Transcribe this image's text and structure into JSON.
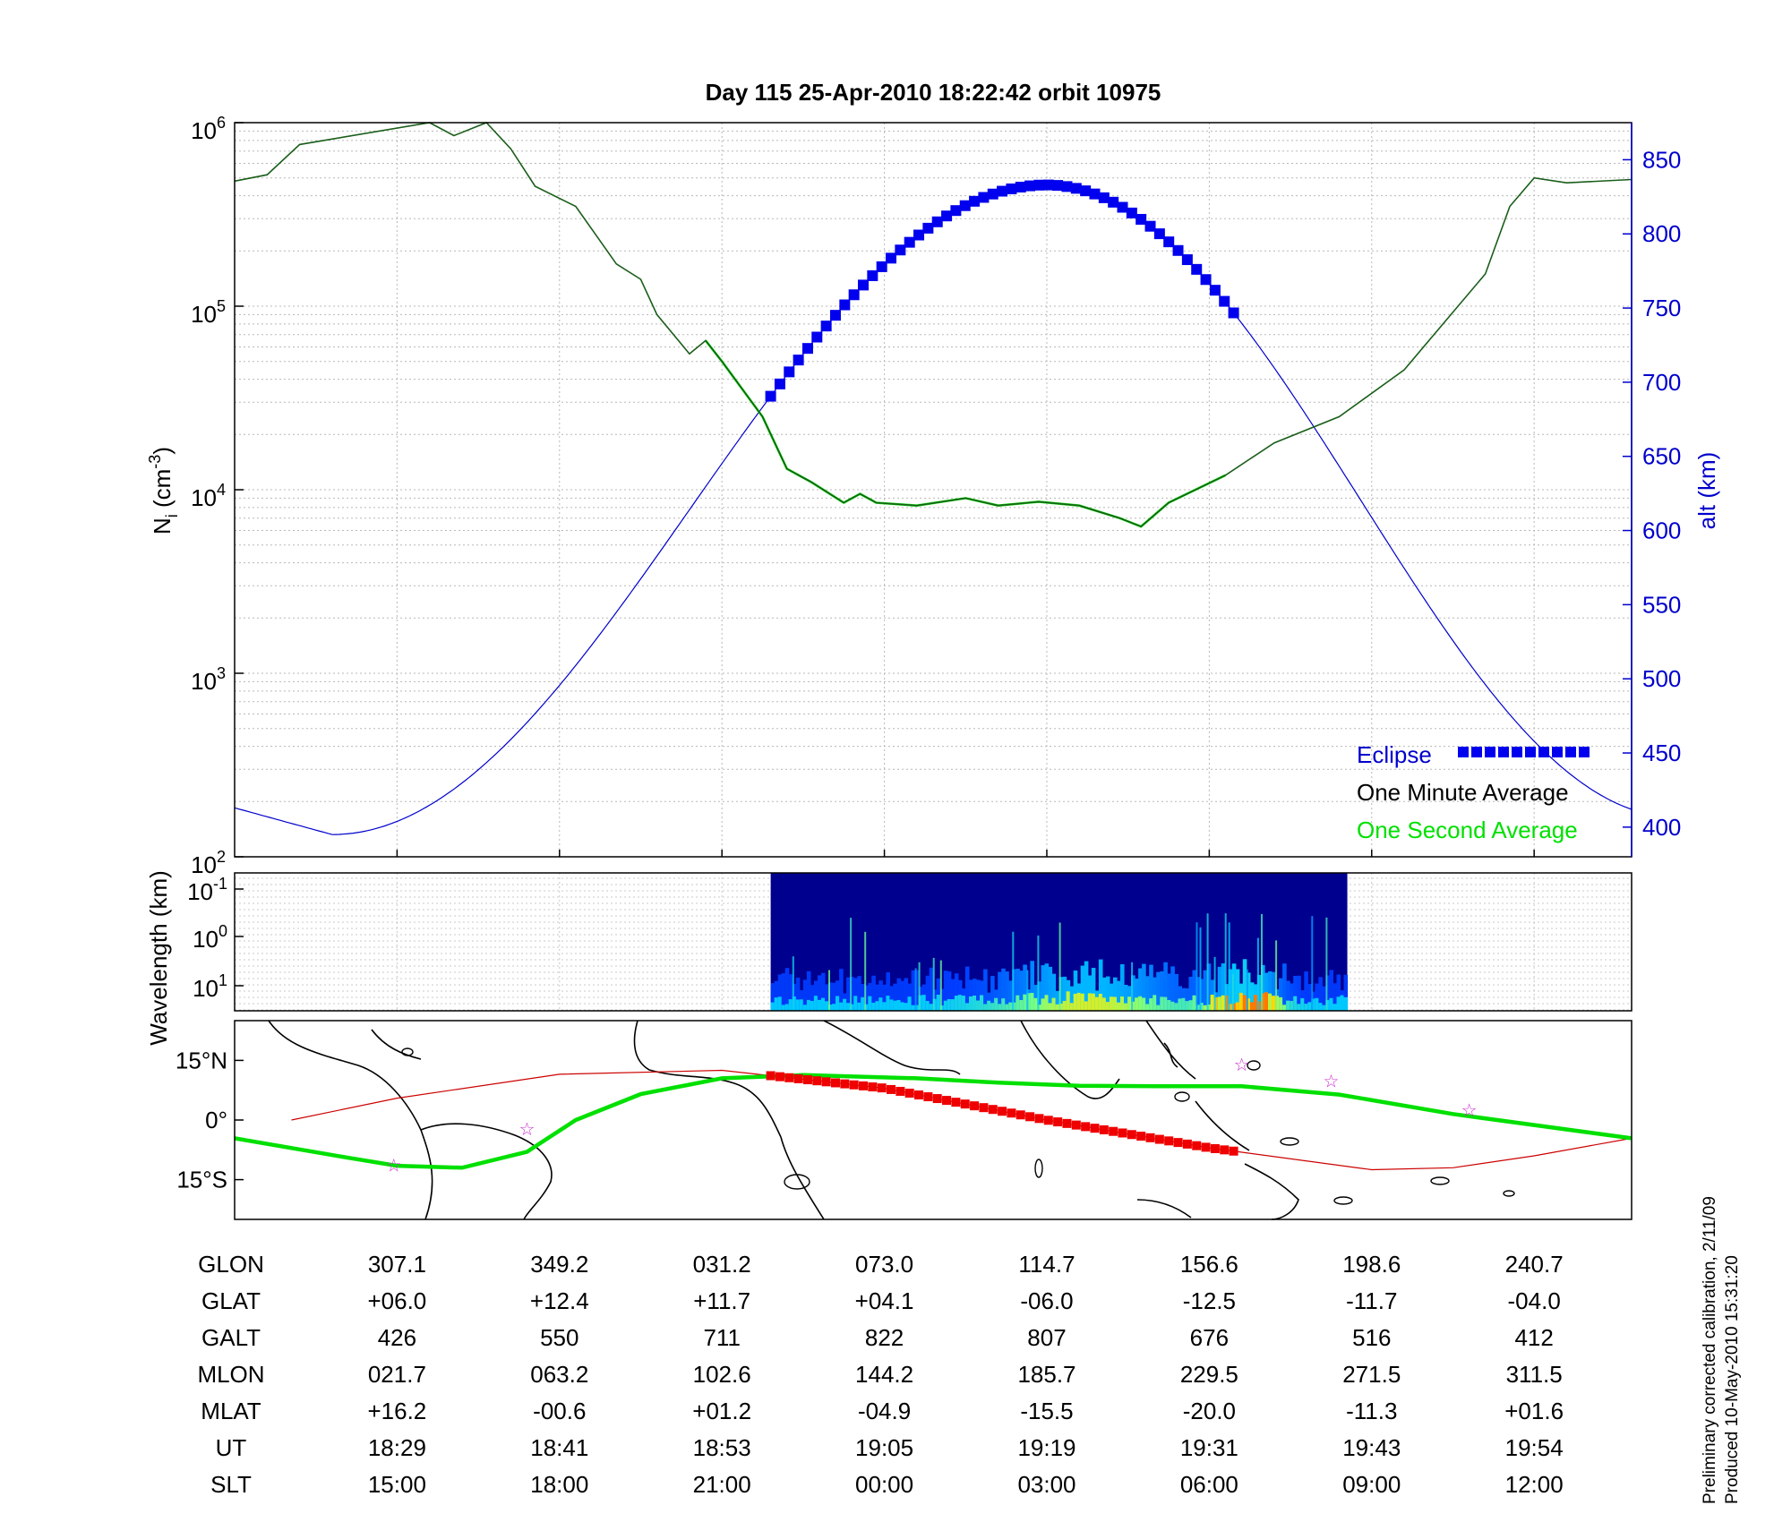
{
  "title": "Day 115  25-Apr-2010 18:22:42   orbit 10975",
  "footnote": {
    "line1": "Preliminary corrected calibration, 2/11/09",
    "line2": "Produced 10-May-2010 15:31:20"
  },
  "colors": {
    "one_minute": "#1a5e1a",
    "one_second": "#00e000",
    "altitude": "#0000cc",
    "eclipse": "#0000ee",
    "ground_track": "#00e000",
    "eclipse_track": "#ee0000",
    "magnetic_equator": "#cc0000",
    "star": "#cc33cc",
    "spectrogram_bg": "#00008f"
  },
  "chart_data": [
    {
      "type": "line",
      "panel": "density",
      "ylabel": "N_i (cm^-3)",
      "yscale": "log",
      "ylim": [
        100,
        1000000
      ],
      "yticks": [
        "10^2",
        "10^3",
        "10^4",
        "10^5",
        "10^6"
      ],
      "y2label": "alt (km)",
      "y2lim": [
        380,
        875
      ],
      "y2ticks": [
        400,
        450,
        500,
        550,
        600,
        650,
        700,
        750,
        800,
        850
      ],
      "xlim": [
        0,
        8.6
      ],
      "legend": [
        "Eclipse",
        "One Minute Average",
        "One Second Average"
      ],
      "legend_position": "bottom-right",
      "grid": true,
      "series": [
        {
          "name": "One Minute Average",
          "axis": "left",
          "x": [
            0,
            0.2,
            0.4,
            1.2,
            1.35,
            1.55,
            1.7,
            1.85,
            2.1,
            2.35,
            2.5,
            2.6,
            2.8,
            2.9,
            3.0,
            3.25,
            3.4,
            3.55,
            3.75,
            3.85,
            3.95,
            4.2,
            4.5,
            4.7,
            4.95,
            5.2,
            5.45,
            5.58,
            5.75,
            6.1,
            6.4,
            6.8,
            7.2,
            7.7,
            7.85,
            8.0,
            8.2,
            8.6
          ],
          "y": [
            480000,
            520000,
            760000,
            1000000,
            850000,
            1000000,
            720000,
            450000,
            350000,
            170000,
            140000,
            90000,
            55000,
            65000,
            50000,
            25000,
            13000,
            11000,
            8500,
            9500,
            8500,
            8200,
            9000,
            8200,
            8600,
            8200,
            7000,
            6300,
            8500,
            12000,
            18000,
            25000,
            45000,
            150000,
            350000,
            500000,
            470000,
            490000
          ]
        },
        {
          "name": "One Second Average",
          "axis": "left",
          "x": [
            2.9,
            3.0,
            3.25,
            3.4,
            3.55,
            3.75,
            3.85,
            3.95,
            4.2,
            4.5,
            4.7,
            4.95,
            5.2,
            5.45,
            5.58,
            5.75,
            6.1
          ],
          "y": [
            65000,
            50000,
            25000,
            13000,
            11000,
            8500,
            9500,
            8500,
            8200,
            9000,
            8200,
            8600,
            8200,
            7000,
            6300,
            8500,
            12000
          ]
        },
        {
          "name": "alt",
          "axis": "right",
          "perigee": [
            0.6,
            395
          ],
          "apogee": [
            5.0,
            833
          ],
          "end": [
            8.6,
            412
          ]
        },
        {
          "name": "Eclipse",
          "axis": "right",
          "x_range": [
            3.3,
            6.15
          ]
        }
      ]
    },
    {
      "type": "heatmap",
      "panel": "spectrogram",
      "ylabel": "Wavelength (km)",
      "yticks": [
        "10^-1",
        "10^0",
        "10^1"
      ],
      "xlim": [
        0,
        8.6
      ],
      "data_x_range": [
        3.3,
        6.85
      ]
    },
    {
      "type": "line",
      "panel": "ground_track",
      "yticks": [
        "15°N",
        "0°",
        "15°S"
      ],
      "ylim": [
        -25,
        25
      ],
      "xlim": [
        0,
        8.6
      ],
      "series": [
        {
          "name": "Ground track",
          "x": [
            0,
            0.7,
            1.0,
            1.4,
            1.8,
            2.1,
            2.5,
            3.0,
            3.5,
            4.2,
            4.7,
            5.2,
            5.7,
            6.2,
            6.8,
            7.5,
            8.6
          ],
          "y": [
            -4.6,
            -9.5,
            -11.5,
            -12,
            -8,
            0,
            6.5,
            10.5,
            11.3,
            10.5,
            9.4,
            8.6,
            8.5,
            8.5,
            6.4,
            1.5,
            -4.6
          ]
        },
        {
          "name": "Eclipse",
          "x_range": [
            3.3,
            6.15
          ]
        },
        {
          "name": "Magnetic equator",
          "x": [
            0.35,
            1.0,
            2.0,
            3.0,
            4.0,
            5.0,
            6.0,
            7.0,
            7.5,
            8.0,
            8.6
          ],
          "y": [
            0,
            5.5,
            11.5,
            12.5,
            8,
            0,
            -7,
            -12.5,
            -12,
            -9,
            -4.6
          ]
        },
        {
          "name": "Stars",
          "x": [
            0.98,
            1.8,
            6.2,
            6.75,
            7.6
          ],
          "y": [
            -11.4,
            -2.2,
            14,
            9.8,
            2.5
          ]
        }
      ]
    },
    {
      "type": "table",
      "panel": "orbit_table",
      "rows": [
        {
          "label": "GLON",
          "values": [
            "307.1",
            "349.2",
            "031.2",
            "073.0",
            "114.7",
            "156.6",
            "198.6",
            "240.7"
          ]
        },
        {
          "label": "GLAT",
          "values": [
            "+06.0",
            "+12.4",
            "+11.7",
            "+04.1",
            "-06.0",
            "-12.5",
            "-11.7",
            "-04.0"
          ]
        },
        {
          "label": "GALT",
          "values": [
            "426",
            "550",
            "711",
            "822",
            "807",
            "676",
            "516",
            "412"
          ]
        },
        {
          "label": "MLON",
          "values": [
            "021.7",
            "063.2",
            "102.6",
            "144.2",
            "185.7",
            "229.5",
            "271.5",
            "311.5"
          ]
        },
        {
          "label": "MLAT",
          "values": [
            "+16.2",
            "-00.6",
            "+01.2",
            "-04.9",
            "-15.5",
            "-20.0",
            "-11.3",
            "+01.6"
          ]
        },
        {
          "label": "UT",
          "values": [
            "18:29",
            "18:41",
            "18:53",
            "19:05",
            "19:19",
            "19:31",
            "19:43",
            "19:54"
          ]
        },
        {
          "label": "SLT",
          "values": [
            "15:00",
            "18:00",
            "21:00",
            "00:00",
            "03:00",
            "06:00",
            "09:00",
            "12:00"
          ]
        }
      ]
    }
  ]
}
